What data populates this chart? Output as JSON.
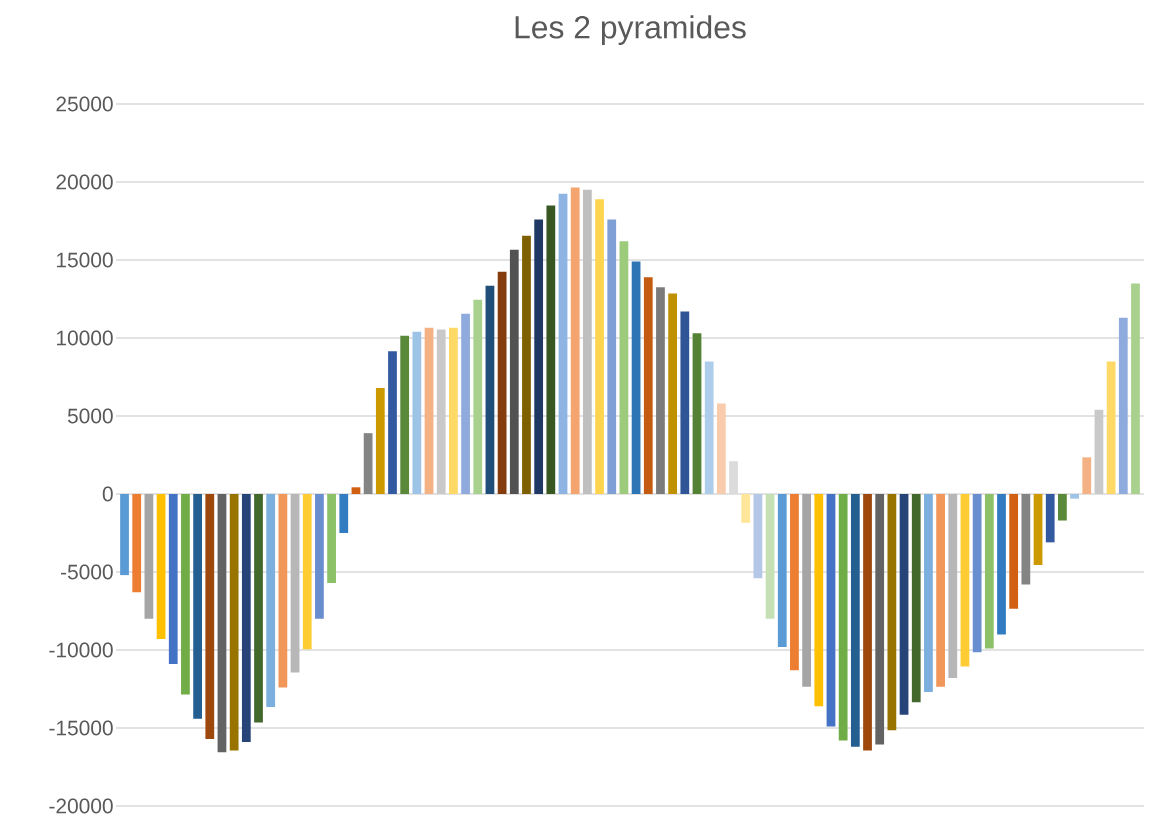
{
  "chart_data": {
    "type": "bar",
    "title": "Les 2 pyramides",
    "categories": [
      null,
      null,
      null,
      null,
      null,
      null,
      null,
      null,
      null,
      null,
      null,
      null,
      null,
      null,
      null,
      null,
      null,
      null,
      null,
      null,
      null,
      null,
      null,
      null,
      null,
      null,
      null,
      null,
      null,
      null,
      null,
      null,
      null,
      null,
      null,
      null,
      null,
      null,
      null,
      null,
      null,
      null,
      null,
      null,
      null,
      null,
      null,
      null,
      null,
      null,
      null,
      null,
      null,
      null,
      null,
      null,
      null,
      null,
      null,
      null,
      null,
      null,
      null,
      null,
      null,
      null,
      null,
      null,
      null,
      null,
      null,
      null,
      null,
      null,
      null,
      null,
      null,
      null,
      null,
      null,
      null,
      null,
      null,
      null
    ],
    "values": [
      -5200,
      -6300,
      -8000,
      -9300,
      -10900,
      -12850,
      -14400,
      -15700,
      -16550,
      -16450,
      -15900,
      -14650,
      -13650,
      -12400,
      -11450,
      -9950,
      -8000,
      -5700,
      -2500,
      430,
      3900,
      6800,
      9150,
      10150,
      10400,
      10650,
      10550,
      10650,
      11550,
      12450,
      13350,
      14250,
      15650,
      16550,
      17600,
      18500,
      19250,
      19650,
      19500,
      18900,
      17600,
      16200,
      14900,
      13900,
      13250,
      12850,
      11700,
      10300,
      8500,
      5800,
      2100,
      -1850,
      -5400,
      -8000,
      -9800,
      -11300,
      -12350,
      -13600,
      -14900,
      -15800,
      -16200,
      -16450,
      -16050,
      -15150,
      -14150,
      -13350,
      -12700,
      -12350,
      -11800,
      -11050,
      -10150,
      -9900,
      -9000,
      -7350,
      -5800,
      -4550,
      -3100,
      -1700,
      -300,
      2350,
      5400,
      8500,
      11300,
      13500
    ],
    "colors": [
      "#5b9bd5",
      "#ed7d31",
      "#a5a5a5",
      "#ffc000",
      "#4472c4",
      "#70ad47",
      "#255e91",
      "#9e480e",
      "#636363",
      "#997300",
      "#264478",
      "#43682b",
      "#7cafdd",
      "#f1975a",
      "#b7b7b7",
      "#ffcd33",
      "#698ed0",
      "#8cc168",
      "#327dc2",
      "#d26012",
      "#848484",
      "#cc9a00",
      "#335aa1",
      "#5a8a39",
      "#9dc3e6",
      "#f4b183",
      "#c9c9c9",
      "#ffd966",
      "#8faadc",
      "#a9d18e",
      "#1f4e79",
      "#843c0c",
      "#525252",
      "#7f6000",
      "#203864",
      "#385723",
      "#8db4e2",
      "#f4a46e",
      "#bfbfbf",
      "#ffd54f",
      "#7f9fd6",
      "#9ccb7c",
      "#2e75b6",
      "#c55a11",
      "#7b7b7b",
      "#bf9000",
      "#2f5597",
      "#548235",
      "#adcdea",
      "#f8cbad",
      "#dbdbdb",
      "#ffe699",
      "#b4c7e7",
      "#c5e0b4",
      "#5b9bd5",
      "#ed7d31",
      "#a5a5a5",
      "#ffc000",
      "#4472c4",
      "#70ad47",
      "#255e91",
      "#9e480e",
      "#636363",
      "#997300",
      "#264478",
      "#43682b",
      "#7cafdd",
      "#f1975a",
      "#b7b7b7",
      "#ffcd33",
      "#698ed0",
      "#8cc168",
      "#327dc2",
      "#d26012",
      "#848484",
      "#cc9a00",
      "#335aa1",
      "#5a8a39",
      "#9dc3e6",
      "#f4b183",
      "#c9c9c9",
      "#ffd966",
      "#8faadc",
      "#a9d18e"
    ],
    "ylim": [
      -20000,
      25000
    ],
    "yticks": [
      -20000,
      -15000,
      -10000,
      -5000,
      0,
      5000,
      10000,
      15000,
      20000,
      25000
    ],
    "grid": "y"
  }
}
